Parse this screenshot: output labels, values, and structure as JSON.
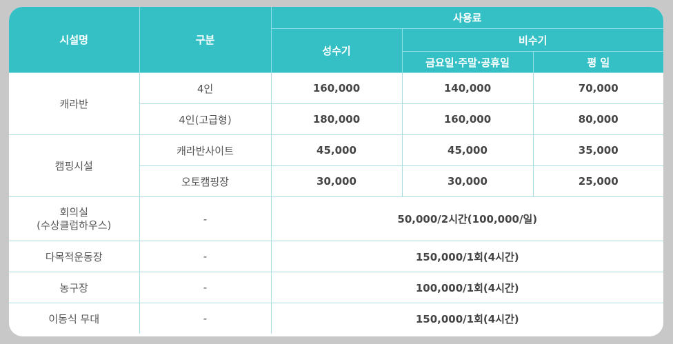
{
  "header": {
    "facility": "시설명",
    "category": "구분",
    "fee": "사용료",
    "peak": "성수기",
    "offpeak": "비수기",
    "weekend": "금요일·주말·공휴일",
    "weekday": "평 일"
  },
  "rows": {
    "caravan": {
      "name": "캐라반",
      "items": [
        {
          "type": "4인",
          "peak": "160,000",
          "weekend": "140,000",
          "weekday": "70,000"
        },
        {
          "type": "4인(고급형)",
          "peak": "180,000",
          "weekend": "160,000",
          "weekday": "80,000"
        }
      ]
    },
    "camping": {
      "name": "캠핑시설",
      "items": [
        {
          "type": "캐라반사이트",
          "peak": "45,000",
          "weekend": "45,000",
          "weekday": "35,000"
        },
        {
          "type": "오토캠핑장",
          "peak": "30,000",
          "weekend": "30,000",
          "weekday": "25,000"
        }
      ]
    },
    "meeting": {
      "name_line1": "회의실",
      "name_line2": "(수상클럽하우스)",
      "type": "-",
      "fee": "50,000/2시간(100,000/일)"
    },
    "sports": {
      "name": "다목적운동장",
      "type": "-",
      "fee": "150,000/1회(4시간)"
    },
    "basketball": {
      "name": "농구장",
      "type": "-",
      "fee": "100,000/1회(4시간)"
    },
    "stage": {
      "name": "이동식 무대",
      "type": "-",
      "fee": "150,000/1회(4시간)"
    }
  }
}
